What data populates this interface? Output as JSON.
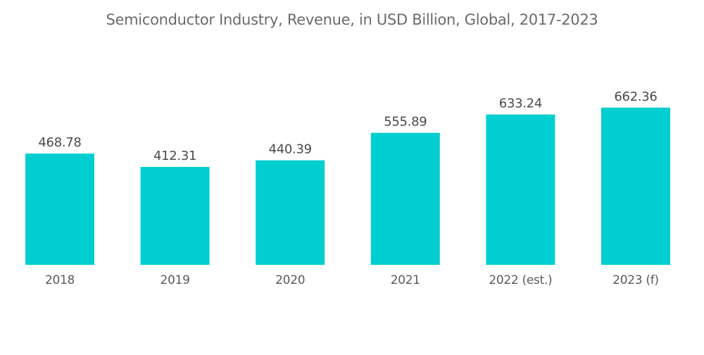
{
  "chart_data": {
    "type": "bar",
    "title": "Semiconductor Industry, Revenue, in USD Billion, Global, 2017-2023",
    "xlabel": "",
    "ylabel": "",
    "categories": [
      "2018",
      "2019",
      "2020",
      "2021",
      "2022 (est.)",
      "2023 (f)"
    ],
    "values": [
      468.78,
      412.31,
      440.39,
      555.89,
      633.24,
      662.36
    ],
    "value_labels": [
      "468.78",
      "412.31",
      "440.39",
      "555.89",
      "633.24",
      "662.36"
    ],
    "ylim": [
      0,
      700
    ],
    "grid": false,
    "legend": "none",
    "bar_color": "#00ced1"
  }
}
